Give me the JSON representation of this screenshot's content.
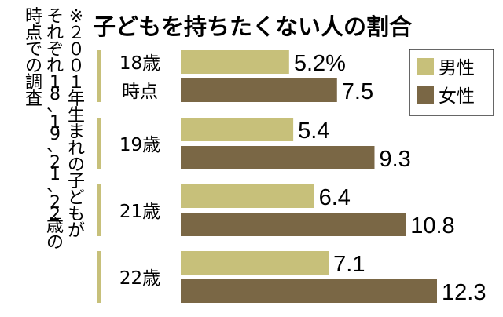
{
  "colors": {
    "male": "#c7c07a",
    "female": "#7a6745",
    "text": "#1a1a1a",
    "legend_border": "#333333"
  },
  "chart_data": {
    "type": "bar",
    "orientation": "horizontal",
    "title": "子どもを持ちたくない人の割合",
    "note": [
      "※２００１年生まれの子どもが",
      "それぞれ18、19、21、22歳の",
      "時点での調査"
    ],
    "categories": [
      [
        "18歳",
        "時点"
      ],
      [
        "19歳"
      ],
      [
        "21歳"
      ],
      [
        "22歳"
      ]
    ],
    "series": [
      {
        "name": "男性",
        "values": [
          5.2,
          5.4,
          6.4,
          7.1
        ],
        "labels": [
          "5.2%",
          "5.4",
          "6.4",
          "7.1"
        ]
      },
      {
        "name": "女性",
        "values": [
          7.5,
          9.3,
          10.8,
          12.3
        ],
        "labels": [
          "7.5",
          "9.3",
          "10.8",
          "12.3"
        ]
      }
    ],
    "unit": "%",
    "xlim": [
      0,
      12.3
    ],
    "legend": "top-right",
    "grid": false
  }
}
